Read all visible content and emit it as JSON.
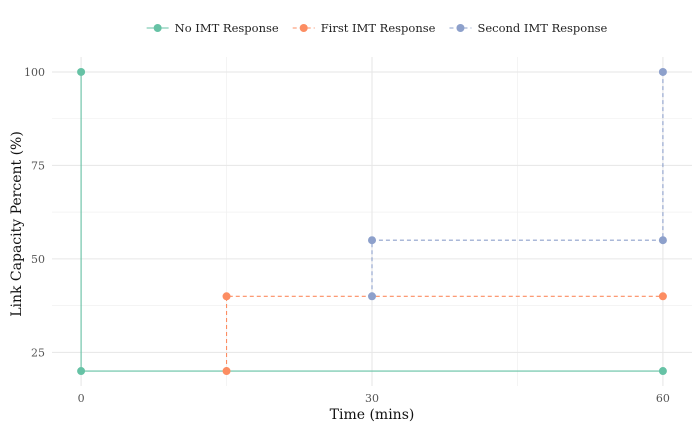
{
  "chart_data": {
    "type": "line",
    "title": "",
    "xlabel": "Time (mins)",
    "ylabel": "Link Capacity Percent (%)",
    "xlim": [
      -3,
      63
    ],
    "ylim": [
      16,
      104
    ],
    "x_ticks": [
      0,
      30,
      60
    ],
    "y_ticks": [
      25,
      50,
      75,
      100
    ],
    "x_tick_labels": [
      "0",
      "30",
      "60"
    ],
    "y_tick_labels": [
      "25",
      "50",
      "75",
      "100"
    ],
    "grid": true,
    "legend_position": "top",
    "series": [
      {
        "name": "No IMT Response",
        "color": "#66C2A5",
        "line_style": "solid",
        "step": true,
        "points": [
          {
            "x": 0,
            "y": 100
          },
          {
            "x": 0,
            "y": 20
          },
          {
            "x": 60,
            "y": 20
          }
        ]
      },
      {
        "name": "First IMT Response",
        "color": "#FC8D62",
        "line_style": "dashed",
        "step": true,
        "points": [
          {
            "x": 15,
            "y": 20
          },
          {
            "x": 15,
            "y": 40
          },
          {
            "x": 60,
            "y": 40
          }
        ]
      },
      {
        "name": "Second IMT Response",
        "color": "#8DA0CB",
        "line_style": "dashed",
        "step": true,
        "points": [
          {
            "x": 30,
            "y": 40
          },
          {
            "x": 30,
            "y": 55
          },
          {
            "x": 60,
            "y": 55
          },
          {
            "x": 60,
            "y": 100
          }
        ]
      }
    ]
  }
}
